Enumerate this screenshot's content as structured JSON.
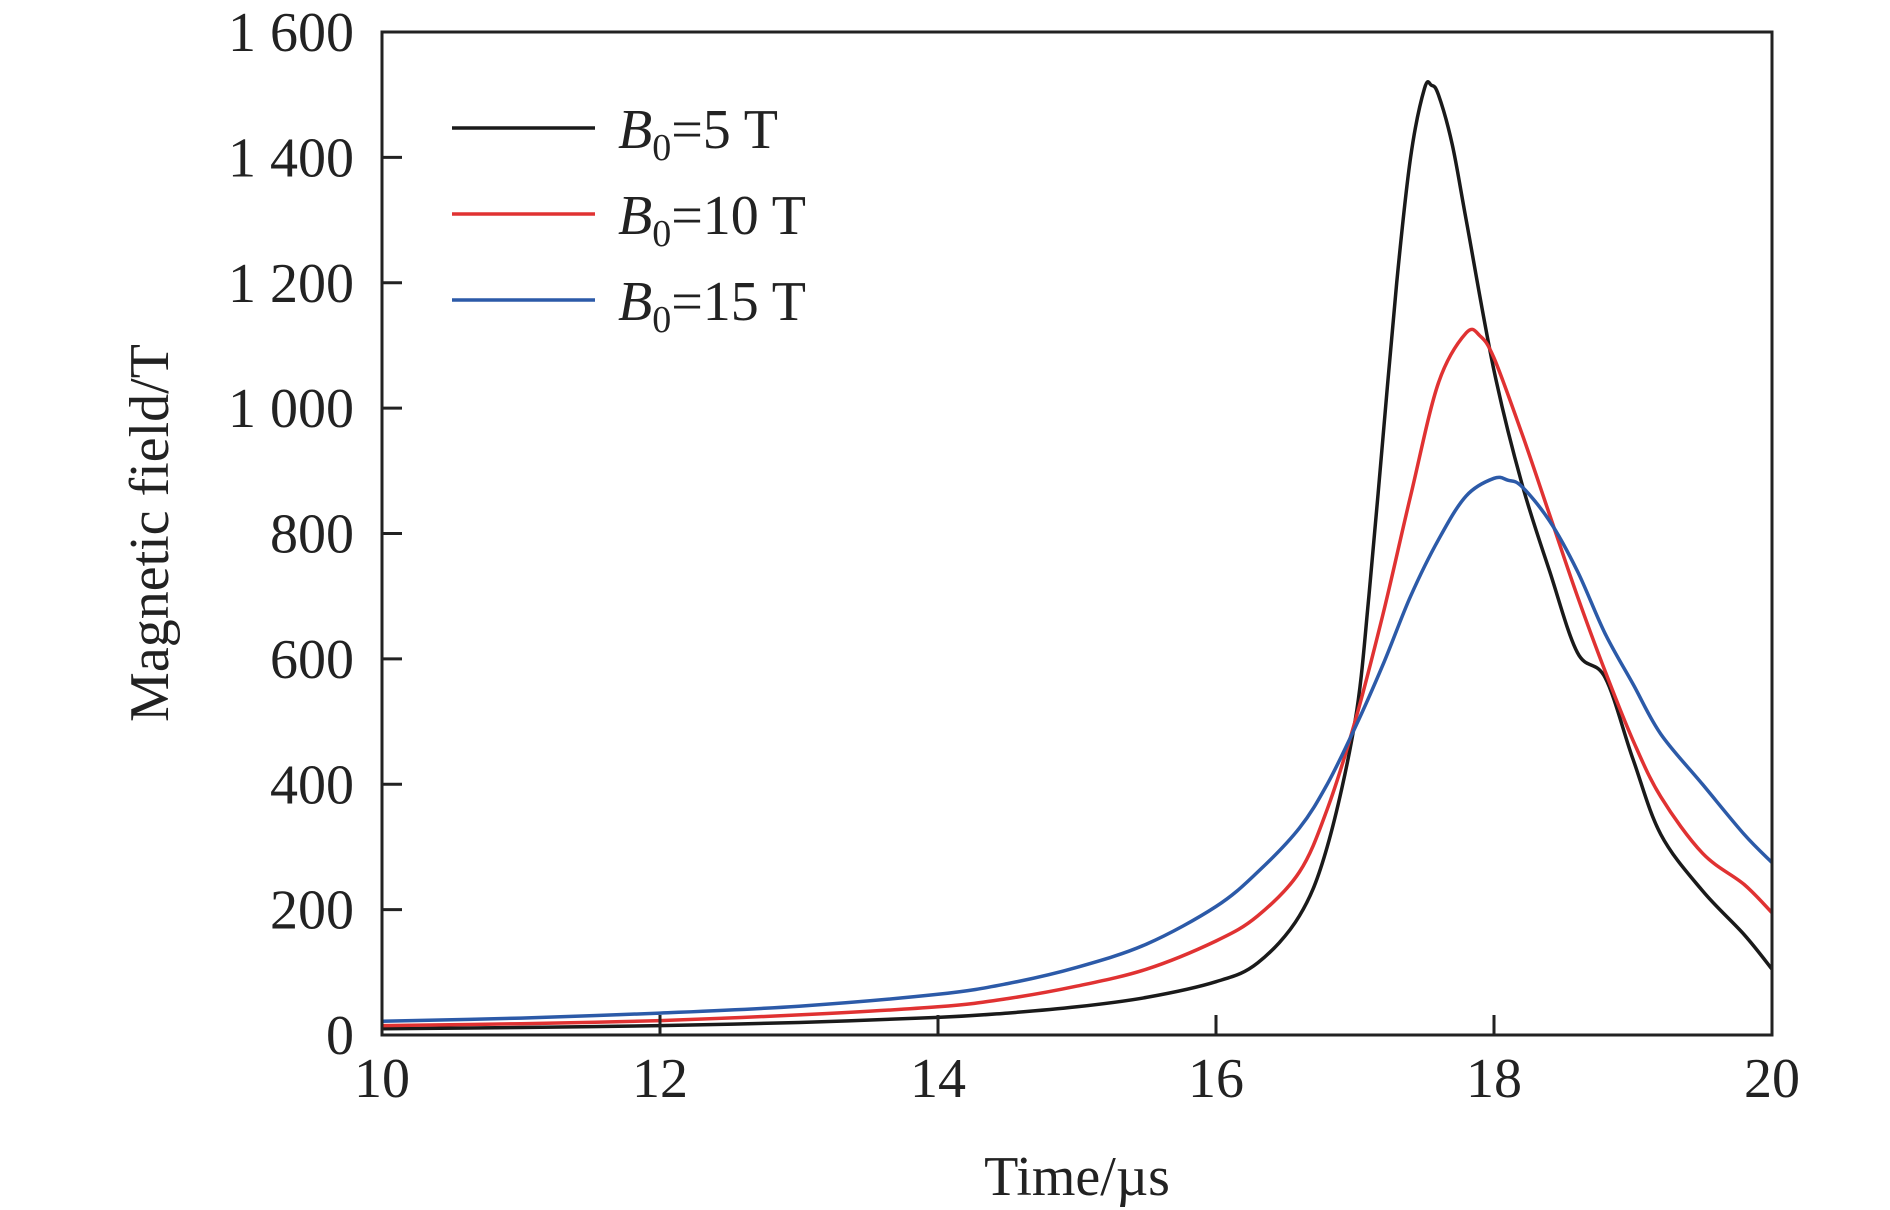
{
  "chart_data": {
    "type": "line",
    "xlabel": "Time/µs",
    "ylabel": "Magnetic field/T",
    "xlim": [
      10,
      20
    ],
    "ylim": [
      0,
      1600
    ],
    "x_ticks": [
      10,
      12,
      14,
      16,
      18,
      20
    ],
    "x_tick_labels": [
      "10",
      "12",
      "14",
      "16",
      "18",
      "20"
    ],
    "y_ticks": [
      0,
      200,
      400,
      600,
      800,
      1000,
      1200,
      1400,
      1600
    ],
    "y_tick_labels": [
      "0",
      "200",
      "400",
      "600",
      "800",
      "1 000",
      "1 200",
      "1 400",
      "1 600"
    ],
    "grid": false,
    "legend_position": "top-left",
    "series": [
      {
        "name": "B0=5 T",
        "label_parts": {
          "symbol": "B",
          "sub": "0",
          "rest": "=5 T"
        },
        "color": "#1a1a1a",
        "points": [
          [
            10,
            10
          ],
          [
            11,
            12
          ],
          [
            12,
            15
          ],
          [
            13,
            20
          ],
          [
            14,
            28
          ],
          [
            14.5,
            35
          ],
          [
            15,
            45
          ],
          [
            15.5,
            60
          ],
          [
            16,
            85
          ],
          [
            16.3,
            115
          ],
          [
            16.6,
            190
          ],
          [
            16.8,
            300
          ],
          [
            17.0,
            500
          ],
          [
            17.1,
            700
          ],
          [
            17.2,
            950
          ],
          [
            17.3,
            1200
          ],
          [
            17.4,
            1400
          ],
          [
            17.5,
            1510
          ],
          [
            17.55,
            1515
          ],
          [
            17.6,
            1500
          ],
          [
            17.7,
            1420
          ],
          [
            17.8,
            1300
          ],
          [
            18.0,
            1060
          ],
          [
            18.2,
            880
          ],
          [
            18.4,
            740
          ],
          [
            18.6,
            610
          ],
          [
            18.8,
            570
          ],
          [
            19.0,
            440
          ],
          [
            19.2,
            320
          ],
          [
            19.5,
            230
          ],
          [
            19.8,
            160
          ],
          [
            20,
            105
          ]
        ]
      },
      {
        "name": "B0=10 T",
        "label_parts": {
          "symbol": "B",
          "sub": "0",
          "rest": "=10 T"
        },
        "color": "#e03232",
        "points": [
          [
            10,
            15
          ],
          [
            11,
            18
          ],
          [
            12,
            23
          ],
          [
            13,
            32
          ],
          [
            14,
            45
          ],
          [
            14.5,
            58
          ],
          [
            15,
            78
          ],
          [
            15.5,
            105
          ],
          [
            16,
            150
          ],
          [
            16.3,
            190
          ],
          [
            16.6,
            260
          ],
          [
            16.8,
            360
          ],
          [
            17.0,
            500
          ],
          [
            17.2,
            670
          ],
          [
            17.4,
            860
          ],
          [
            17.6,
            1040
          ],
          [
            17.8,
            1120
          ],
          [
            17.9,
            1115
          ],
          [
            18.0,
            1080
          ],
          [
            18.2,
            960
          ],
          [
            18.4,
            830
          ],
          [
            18.6,
            700
          ],
          [
            18.8,
            580
          ],
          [
            19.0,
            470
          ],
          [
            19.2,
            380
          ],
          [
            19.5,
            290
          ],
          [
            19.8,
            240
          ],
          [
            20,
            195
          ]
        ]
      },
      {
        "name": "B0=15 T",
        "label_parts": {
          "symbol": "B",
          "sub": "0",
          "rest": "=15 T"
        },
        "color": "#2c5aa8",
        "points": [
          [
            10,
            22
          ],
          [
            11,
            27
          ],
          [
            12,
            35
          ],
          [
            13,
            46
          ],
          [
            14,
            65
          ],
          [
            14.5,
            82
          ],
          [
            15,
            108
          ],
          [
            15.5,
            145
          ],
          [
            16,
            205
          ],
          [
            16.3,
            260
          ],
          [
            16.6,
            330
          ],
          [
            16.8,
            400
          ],
          [
            17.0,
            490
          ],
          [
            17.2,
            590
          ],
          [
            17.4,
            700
          ],
          [
            17.6,
            790
          ],
          [
            17.8,
            860
          ],
          [
            18.0,
            888
          ],
          [
            18.1,
            885
          ],
          [
            18.2,
            875
          ],
          [
            18.4,
            820
          ],
          [
            18.6,
            740
          ],
          [
            18.8,
            640
          ],
          [
            19.0,
            560
          ],
          [
            19.2,
            480
          ],
          [
            19.5,
            400
          ],
          [
            19.8,
            320
          ],
          [
            20,
            275
          ]
        ]
      }
    ]
  }
}
